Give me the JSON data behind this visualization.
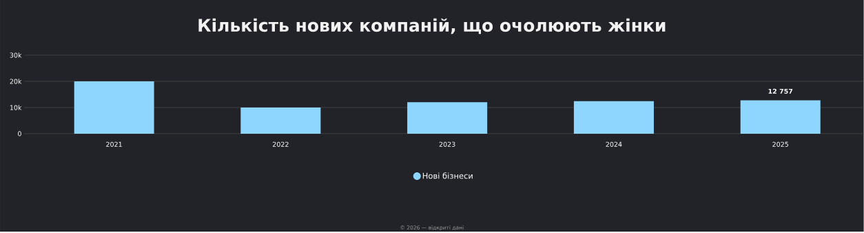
{
  "chart_data": {
    "type": "bar",
    "title": "Кількість нових компаній, що очолюють жінки",
    "categories": [
      "2021",
      "2022",
      "2023",
      "2024",
      "2025"
    ],
    "series": [
      {
        "name": "Нові бізнеси",
        "color": "#8fd6ff",
        "values": [
          20000,
          10000,
          12000,
          12400,
          12757
        ],
        "value_labels": [
          null,
          null,
          null,
          null,
          "12 757"
        ]
      }
    ],
    "ylim": [
      0,
      30000
    ],
    "yticks": [
      {
        "value": 0,
        "label": "0"
      },
      {
        "value": 10000,
        "label": "10k"
      },
      {
        "value": 20000,
        "label": "20k"
      },
      {
        "value": 30000,
        "label": "30k"
      }
    ],
    "grid": "y",
    "legend": "bottom",
    "marker": "circle",
    "annotations": [
      "© 2026 — відкриті дані"
    ]
  }
}
